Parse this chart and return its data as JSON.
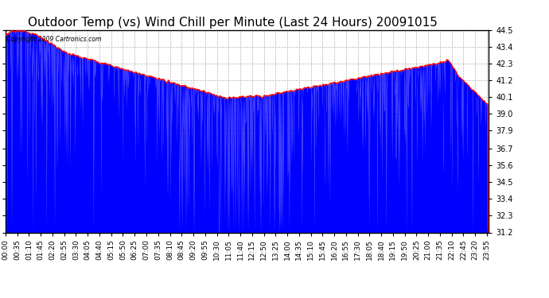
{
  "title": "Outdoor Temp (vs) Wind Chill per Minute (Last 24 Hours) 20091015",
  "copyright_text": "Copyright 2009 Cartronics.com",
  "ylim": [
    31.2,
    44.5
  ],
  "yticks": [
    31.2,
    32.3,
    33.4,
    34.5,
    35.6,
    36.7,
    37.9,
    39.0,
    40.1,
    41.2,
    42.3,
    43.4,
    44.5
  ],
  "bg_color": "#ffffff",
  "plot_bg_color": "#ffffff",
  "grid_color": "#aaaaaa",
  "outdoor_color": "#ff0000",
  "windchill_color": "#0000ff",
  "title_fontsize": 11,
  "tick_fontsize": 7,
  "xlabel_fontsize": 6.5,
  "n_points": 1440,
  "xtick_step_minutes": 35
}
